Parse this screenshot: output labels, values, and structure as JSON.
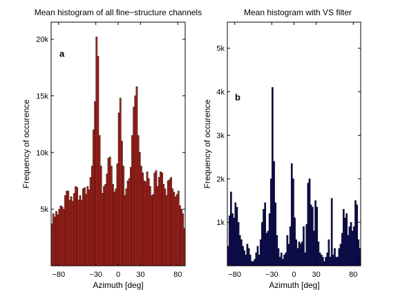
{
  "chart_data": [
    {
      "type": "bar",
      "panel_label": "a",
      "title": "Mean histogram of all fine−structure channels",
      "xlabel": "Azimuth [deg]",
      "ylabel": "Frequency of occurence",
      "xlim": [
        -90,
        90
      ],
      "ylim": [
        0,
        21500
      ],
      "xticks": [
        -80,
        -30,
        0,
        30,
        80
      ],
      "xtick_labels": [
        "−80",
        "−30",
        "0",
        "30",
        "80"
      ],
      "yticks": [
        5000,
        10000,
        15000,
        20000
      ],
      "ytick_labels": [
        "5k",
        "10k",
        "15k",
        "20k"
      ],
      "bar_color": "#b8261e",
      "edge_color": "#000000",
      "bin_width": 2,
      "x": [
        -89,
        -87,
        -85,
        -83,
        -81,
        -79,
        -77,
        -75,
        -73,
        -71,
        -69,
        -67,
        -65,
        -63,
        -61,
        -59,
        -57,
        -55,
        -53,
        -51,
        -49,
        -47,
        -45,
        -43,
        -41,
        -39,
        -37,
        -35,
        -33,
        -31,
        -29,
        -27,
        -25,
        -23,
        -21,
        -19,
        -17,
        -15,
        -13,
        -11,
        -9,
        -7,
        -5,
        -3,
        -1,
        1,
        3,
        5,
        7,
        9,
        11,
        13,
        15,
        17,
        19,
        21,
        23,
        25,
        27,
        29,
        31,
        33,
        35,
        37,
        39,
        41,
        43,
        45,
        47,
        49,
        51,
        53,
        55,
        57,
        59,
        61,
        63,
        65,
        67,
        69,
        71,
        73,
        75,
        77,
        79,
        81,
        83,
        85,
        87,
        89
      ],
      "values": [
        3700,
        4600,
        4300,
        4800,
        4500,
        5000,
        5300,
        5200,
        5000,
        6200,
        6600,
        6600,
        5800,
        6100,
        5700,
        6400,
        7000,
        6900,
        5800,
        6200,
        5800,
        6800,
        6900,
        6300,
        7000,
        6700,
        7800,
        8800,
        12000,
        14500,
        20200,
        18500,
        11500,
        8800,
        6400,
        7000,
        7200,
        8100,
        9500,
        9600,
        8800,
        7200,
        6500,
        6800,
        9000,
        13500,
        14800,
        11000,
        8800,
        6200,
        6800,
        7500,
        7700,
        8700,
        11500,
        14000,
        15000,
        15800,
        11500,
        10000,
        8800,
        8200,
        7500,
        7400,
        8300,
        7700,
        7000,
        6200,
        6300,
        8200,
        8400,
        7000,
        7800,
        8300,
        8200,
        7200,
        6800,
        6200,
        7500,
        7600,
        7800,
        6800,
        6500,
        6100,
        6300,
        6600,
        5300,
        5000,
        4600,
        3300
      ]
    },
    {
      "type": "bar",
      "panel_label": "b",
      "title": "Mean histogram with VS filter",
      "xlabel": "Azimuth [deg]",
      "ylabel": "Frequency of occurence",
      "xlim": [
        -90,
        90
      ],
      "ylim": [
        0,
        5600
      ],
      "xticks": [
        -80,
        -30,
        0,
        30,
        80
      ],
      "xtick_labels": [
        "−80",
        "−30",
        "0",
        "30",
        "80"
      ],
      "yticks": [
        1000,
        2000,
        3000,
        4000,
        5000
      ],
      "ytick_labels": [
        "1k",
        "2k",
        "3k",
        "4k",
        "5k"
      ],
      "bar_color": "#101060",
      "edge_color": "#000000",
      "bin_width": 2,
      "x": [
        -89,
        -87,
        -85,
        -83,
        -81,
        -79,
        -77,
        -75,
        -73,
        -71,
        -69,
        -67,
        -65,
        -63,
        -61,
        -59,
        -57,
        -55,
        -53,
        -51,
        -49,
        -47,
        -45,
        -43,
        -41,
        -39,
        -37,
        -35,
        -33,
        -31,
        -29,
        -27,
        -25,
        -23,
        -21,
        -19,
        -17,
        -15,
        -13,
        -11,
        -9,
        -7,
        -5,
        -3,
        -1,
        1,
        3,
        5,
        7,
        9,
        11,
        13,
        15,
        17,
        19,
        21,
        23,
        25,
        27,
        29,
        31,
        33,
        35,
        37,
        39,
        41,
        43,
        45,
        47,
        49,
        51,
        53,
        55,
        57,
        59,
        61,
        63,
        65,
        67,
        69,
        71,
        73,
        75,
        77,
        79,
        81,
        83,
        85,
        87,
        89
      ],
      "values": [
        450,
        1150,
        1700,
        1200,
        1100,
        1450,
        1350,
        1000,
        700,
        600,
        450,
        350,
        250,
        500,
        400,
        250,
        100,
        100,
        150,
        300,
        450,
        250,
        600,
        1000,
        1300,
        1450,
        750,
        800,
        1200,
        2000,
        4100,
        2400,
        1450,
        700,
        400,
        200,
        300,
        150,
        250,
        300,
        700,
        500,
        900,
        2350,
        2000,
        1100,
        600,
        400,
        550,
        500,
        550,
        900,
        300,
        950,
        1900,
        2000,
        1400,
        1350,
        800,
        1500,
        1350,
        550,
        300,
        250,
        200,
        100,
        200,
        300,
        600,
        200,
        1550,
        250,
        400,
        200,
        200,
        400,
        500,
        750,
        1300,
        1100,
        1200,
        700,
        900,
        1000,
        800,
        900,
        1500,
        1400,
        600,
        400
      ]
    }
  ]
}
